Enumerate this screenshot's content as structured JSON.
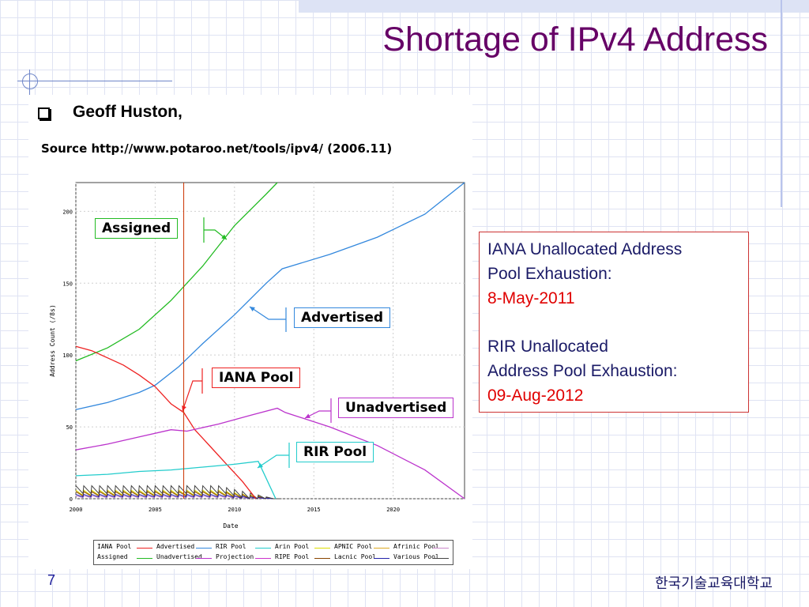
{
  "slide": {
    "title": "Shortage of IPv4 Address",
    "author": "Geoff Huston,",
    "source": "Source http://www.potaroo.net/tools/ipv4/ (2006.11)",
    "page_number": "7",
    "footer": "한국기술교육대학교"
  },
  "infobox": {
    "line1": "IANA Unallocated Address",
    "line2": "Pool Exhaustion:",
    "date1": "8-May-2011",
    "line3": "RIR Unallocated",
    "line4": "Address Pool Exhaustion:",
    "date2": "09-Aug-2012"
  },
  "annotations": {
    "assigned": "Assigned",
    "advertised": "Advertised",
    "iana_pool": "IANA Pool",
    "unadvertised": "Unadvertised",
    "rir_pool": "RIR Pool"
  },
  "colors": {
    "title": "#660066",
    "assigned": "#22bb22",
    "advertised": "#3388dd",
    "iana": "#ee2222",
    "unadvertised": "#bb33cc",
    "rir": "#22cccc",
    "info_red": "#e00000"
  },
  "chart_data": {
    "type": "line",
    "xlabel": "Date",
    "ylabel": "Address Count (/8s)",
    "xlim": [
      2000,
      2024.5
    ],
    "ylim": [
      0,
      220
    ],
    "xticks": [
      "2000",
      "2005",
      "2010",
      "2015",
      "2020"
    ],
    "yticks": [
      "0",
      "50",
      "100",
      "150",
      "200"
    ],
    "grid": true,
    "marker_line_x": 2006.8,
    "series": [
      {
        "name": "Assigned",
        "color": "#22bb22",
        "x": [
          2000,
          2002,
          2004,
          2006,
          2008,
          2010,
          2012,
          2012.7
        ],
        "y": [
          96,
          105,
          118,
          138,
          162,
          190,
          212,
          220
        ]
      },
      {
        "name": "Advertised",
        "color": "#3388dd",
        "x": [
          2000,
          2002,
          2004,
          2005,
          2006.5,
          2008,
          2010,
          2012,
          2013,
          2016,
          2019,
          2022,
          2024.5
        ],
        "y": [
          62,
          67,
          74,
          79,
          92,
          108,
          128,
          150,
          160,
          170,
          182,
          198,
          220
        ]
      },
      {
        "name": "IANA Pool",
        "color": "#ee2222",
        "x": [
          2000,
          2001,
          2002,
          2003,
          2004,
          2005,
          2006,
          2006.8,
          2007.5,
          2008.5,
          2009.5,
          2010.5,
          2011.35
        ],
        "y": [
          106,
          103,
          98,
          93,
          86,
          78,
          66,
          60,
          48,
          36,
          24,
          12,
          0
        ]
      },
      {
        "name": "Unadvertised",
        "color": "#bb33cc",
        "x": [
          2000,
          2002,
          2004,
          2006,
          2007,
          2009,
          2011,
          2012.7,
          2013.2,
          2016,
          2019,
          2022,
          2024.5
        ],
        "y": [
          34,
          38,
          43,
          48,
          47,
          52,
          58,
          63,
          60,
          50,
          37,
          20,
          0
        ]
      },
      {
        "name": "RIR Pool",
        "color": "#22cccc",
        "x": [
          2000,
          2002,
          2004,
          2006,
          2008,
          2010,
          2011.5,
          2012.6
        ],
        "y": [
          16,
          17,
          19,
          20,
          22,
          24,
          26,
          0
        ]
      },
      {
        "name": "Projection",
        "color": "#cc33cc",
        "x": [],
        "y": []
      }
    ],
    "small_pools": [
      {
        "name": "Arin Pool",
        "color": "#dddd00",
        "y": 6
      },
      {
        "name": "APNIC Pool",
        "color": "#ddaa22",
        "y": 5
      },
      {
        "name": "Afrinic Pool",
        "color": "#cc88cc",
        "y": 2
      },
      {
        "name": "RIPE Pool",
        "color": "#884400",
        "y": 5
      },
      {
        "name": "Lacnic Pool",
        "color": "#2222aa",
        "y": 3
      },
      {
        "name": "Various Pool",
        "color": "#444444",
        "y": 9
      }
    ],
    "legend": [
      [
        "IANA Pool",
        "#ee2222"
      ],
      [
        "Advertised",
        "#3388dd"
      ],
      [
        "RIR Pool",
        "#22cccc"
      ],
      [
        "Arin Pool",
        "#dddd00"
      ],
      [
        "APNIC Pool",
        "#ddaa22"
      ],
      [
        "Afrinic Pool",
        "#cc88cc"
      ],
      [
        "Assigned",
        "#22bb22"
      ],
      [
        "Unadvertised",
        "#bb33cc"
      ],
      [
        "Projection",
        "#cc33cc"
      ],
      [
        "RIPE Pool",
        "#884400"
      ],
      [
        "Lacnic Pool",
        "#2222aa"
      ],
      [
        "Various Pool",
        "#444444"
      ]
    ]
  }
}
